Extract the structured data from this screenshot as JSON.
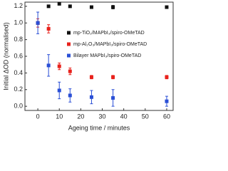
{
  "chart_data": {
    "type": "scatter",
    "x_label": "Ageing time / minutes",
    "y_label": "Initial ΔOD (normalised)",
    "x": [
      0,
      5,
      10,
      15,
      25,
      35,
      60
    ],
    "series": [
      {
        "name": "mp-TiO₂/MAPbI₃/spiro-OMeTAD",
        "color": "#111111",
        "values": [
          1.0,
          1.2,
          1.23,
          1.2,
          1.19,
          1.19,
          1.19
        ],
        "errors": [
          0.01,
          0.01,
          0.01,
          0.01,
          0.01,
          0.02,
          0.01
        ]
      },
      {
        "name": "mp-Al₂O₃/MAPbI₃/spiro-OMeTAD",
        "color": "#e8221c",
        "values": [
          1.0,
          0.93,
          0.48,
          0.42,
          0.35,
          0.35,
          0.35
        ],
        "errors": [
          0.05,
          0.05,
          0.04,
          0.04,
          0.02,
          0.02,
          0.02
        ]
      },
      {
        "name": "Bilayer MAPbI₃/spiro-OMeTAD",
        "color": "#2a4fd6",
        "values": [
          1.0,
          0.49,
          0.19,
          0.13,
          0.11,
          0.1,
          0.06
        ],
        "errors": [
          0.13,
          0.13,
          0.1,
          0.08,
          0.08,
          0.1,
          0.06
        ]
      }
    ],
    "xlim": [
      -6,
      63
    ],
    "xticks": [
      0,
      10,
      20,
      30,
      40,
      50,
      60
    ],
    "ylim": [
      -0.05,
      1.25
    ],
    "yticks": [
      {
        "value": 0,
        "label": "0.0"
      },
      0.2,
      0.4,
      0.6,
      0.8,
      {
        "value": 1,
        "label": "1.0"
      },
      1.2
    ]
  }
}
